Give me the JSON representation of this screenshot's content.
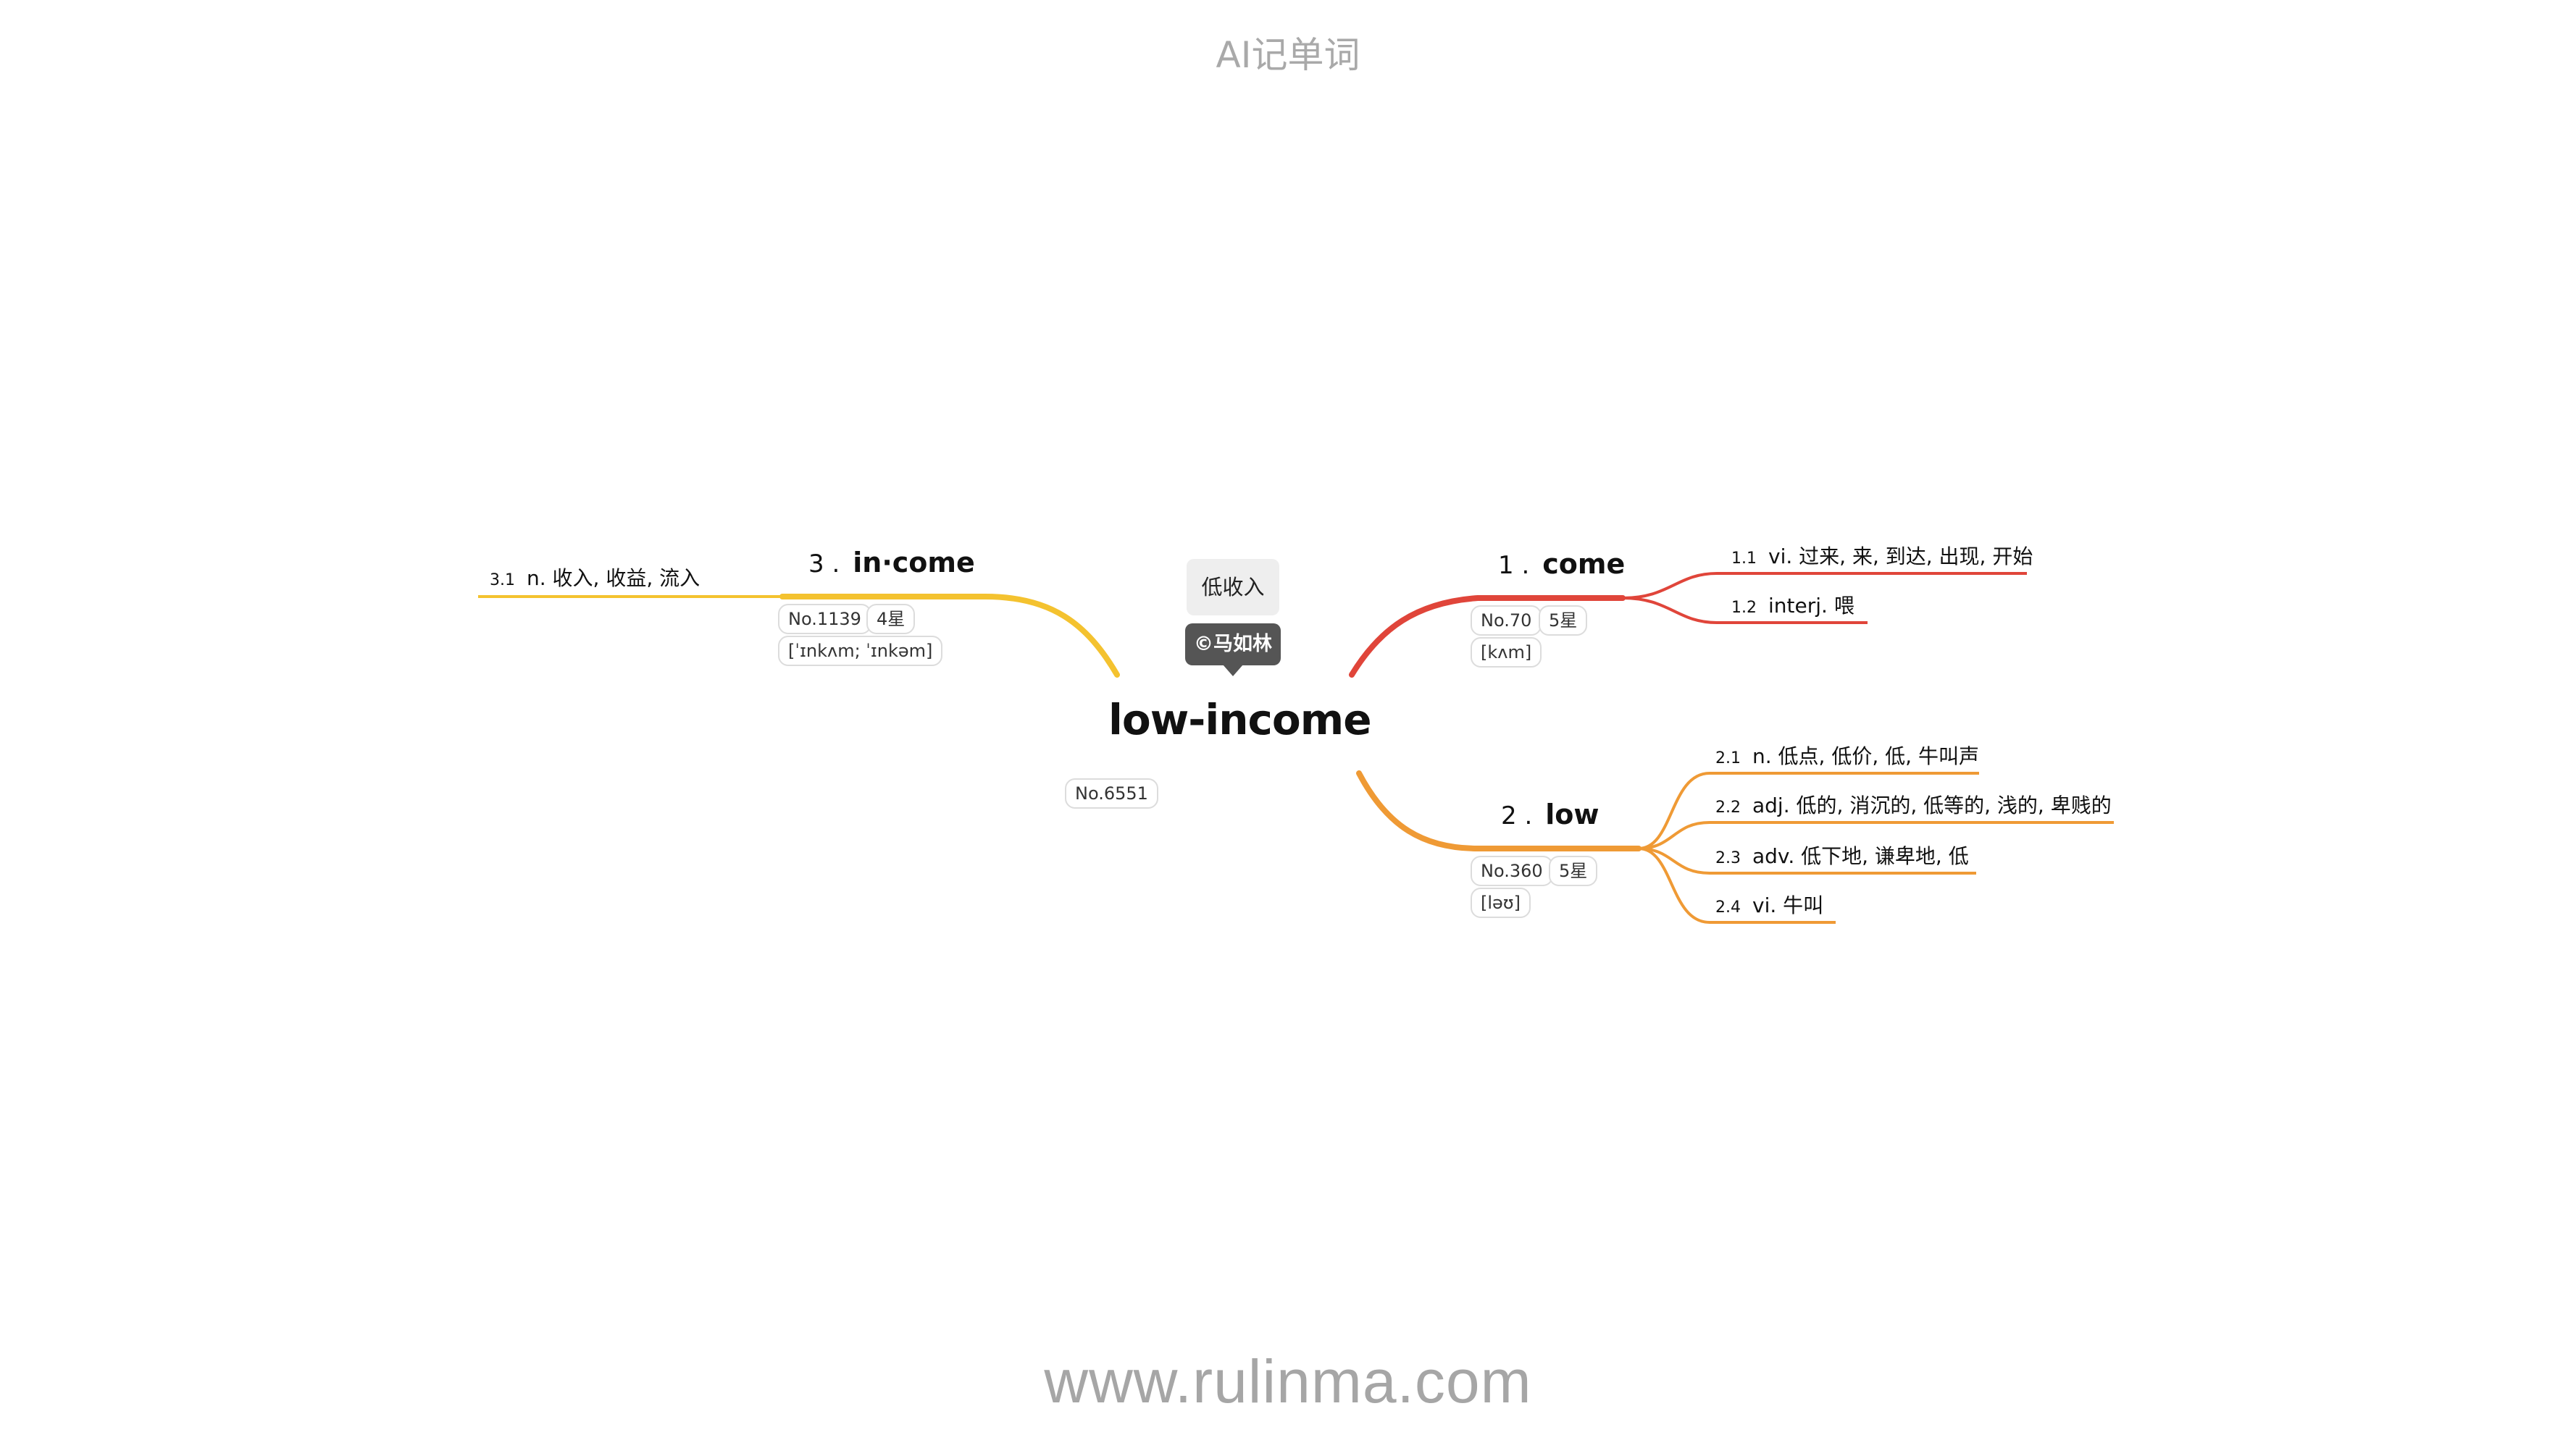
{
  "header": {
    "title": "AI记单词"
  },
  "footer": {
    "url": "www.rulinma.com"
  },
  "center": {
    "word": "low-income",
    "rank": "No.6551",
    "note": "低收入",
    "copyright": "©马如林"
  },
  "colors": {
    "branch_1": "#e0453a",
    "branch_2": "#ef9a35",
    "branch_3": "#f4c22f"
  },
  "branches": [
    {
      "index": "1 .",
      "word": "come",
      "rank": "No.70",
      "stars": "5星",
      "phonetic": "[kʌm]",
      "leaves": [
        {
          "index": "1.1",
          "text": "vi. 过来, 来, 到达, 出现, 开始"
        },
        {
          "index": "1.2",
          "text": "interj. 喂"
        }
      ]
    },
    {
      "index": "2 .",
      "word": "low",
      "rank": "No.360",
      "stars": "5星",
      "phonetic": "[ləʊ]",
      "leaves": [
        {
          "index": "2.1",
          "text": "n. 低点, 低价, 低, 牛叫声"
        },
        {
          "index": "2.2",
          "text": "adj. 低的, 消沉的, 低等的, 浅的, 卑贱的"
        },
        {
          "index": "2.3",
          "text": "adv. 低下地, 谦卑地, 低"
        },
        {
          "index": "2.4",
          "text": "vi. 牛叫"
        }
      ]
    },
    {
      "index": "3 .",
      "word": "in·come",
      "rank": "No.1139",
      "stars": "4星",
      "phonetic": "[ˈɪnkʌm; ˈɪnkəm]",
      "leaves": [
        {
          "index": "3.1",
          "text": "n. 收入, 收益, 流入"
        }
      ]
    }
  ]
}
